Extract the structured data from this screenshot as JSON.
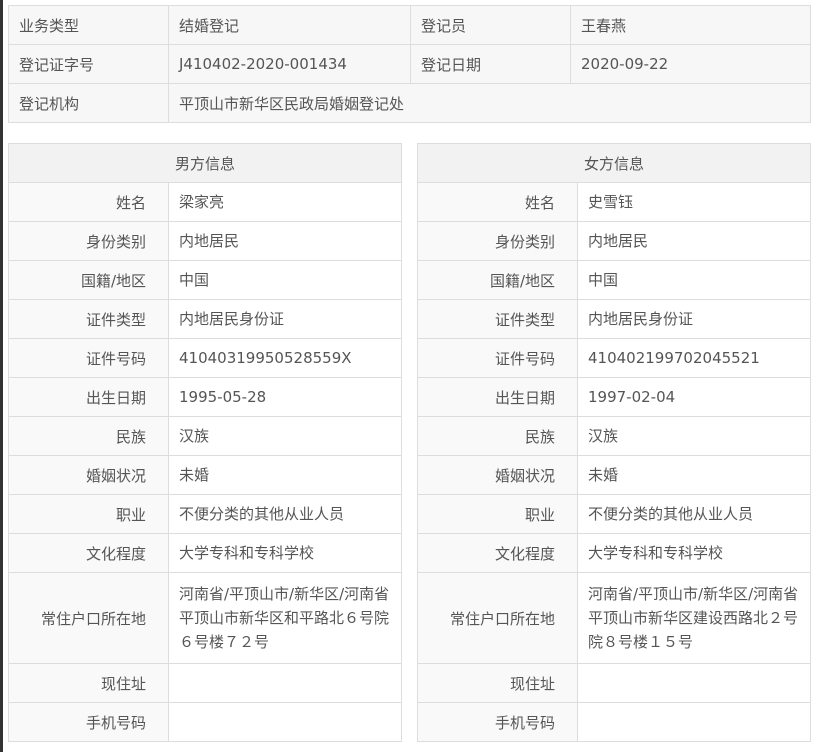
{
  "summary": {
    "rows": [
      [
        {
          "label": "业务类型",
          "value": "结婚登记"
        },
        {
          "label": "登记员",
          "value": "王春燕"
        }
      ],
      [
        {
          "label": "登记证字号",
          "value": "J410402-2020-001434"
        },
        {
          "label": "登记日期",
          "value": "2020-09-22"
        }
      ]
    ],
    "org_label": "登记机构",
    "org_value": "平顶山市新华区民政局婚姻登记处"
  },
  "male": {
    "title": "男方信息",
    "fields": [
      {
        "label": "姓名",
        "value": "梁家亮"
      },
      {
        "label": "身份类别",
        "value": "内地居民"
      },
      {
        "label": "国籍/地区",
        "value": "中国"
      },
      {
        "label": "证件类型",
        "value": "内地居民身份证"
      },
      {
        "label": "证件号码",
        "value": "41040319950528559X"
      },
      {
        "label": "出生日期",
        "value": "1995-05-28"
      },
      {
        "label": "民族",
        "value": "汉族"
      },
      {
        "label": "婚姻状况",
        "value": "未婚"
      },
      {
        "label": "职业",
        "value": "不便分类的其他从业人员"
      },
      {
        "label": "文化程度",
        "value": "大学专科和专科学校"
      },
      {
        "label": "常住户口所在地",
        "value": "河南省/平顶山市/新华区/河南省平顶山市新华区和平路北６号院６号楼７２号"
      },
      {
        "label": "现住址",
        "value": ""
      },
      {
        "label": "手机号码",
        "value": ""
      }
    ]
  },
  "female": {
    "title": "女方信息",
    "fields": [
      {
        "label": "姓名",
        "value": "史雪钰"
      },
      {
        "label": "身份类别",
        "value": "内地居民"
      },
      {
        "label": "国籍/地区",
        "value": "中国"
      },
      {
        "label": "证件类型",
        "value": "内地居民身份证"
      },
      {
        "label": "证件号码",
        "value": "410402199702045521"
      },
      {
        "label": "出生日期",
        "value": "1997-02-04"
      },
      {
        "label": "民族",
        "value": "汉族"
      },
      {
        "label": "婚姻状况",
        "value": "未婚"
      },
      {
        "label": "职业",
        "value": "不便分类的其他从业人员"
      },
      {
        "label": "文化程度",
        "value": "大学专科和专科学校"
      },
      {
        "label": "常住户口所在地",
        "value": "河南省/平顶山市/新华区/河南省平顶山市新华区建设西路北２号院８号楼１５号"
      },
      {
        "label": "现住址",
        "value": ""
      },
      {
        "label": "手机号码",
        "value": ""
      }
    ]
  }
}
